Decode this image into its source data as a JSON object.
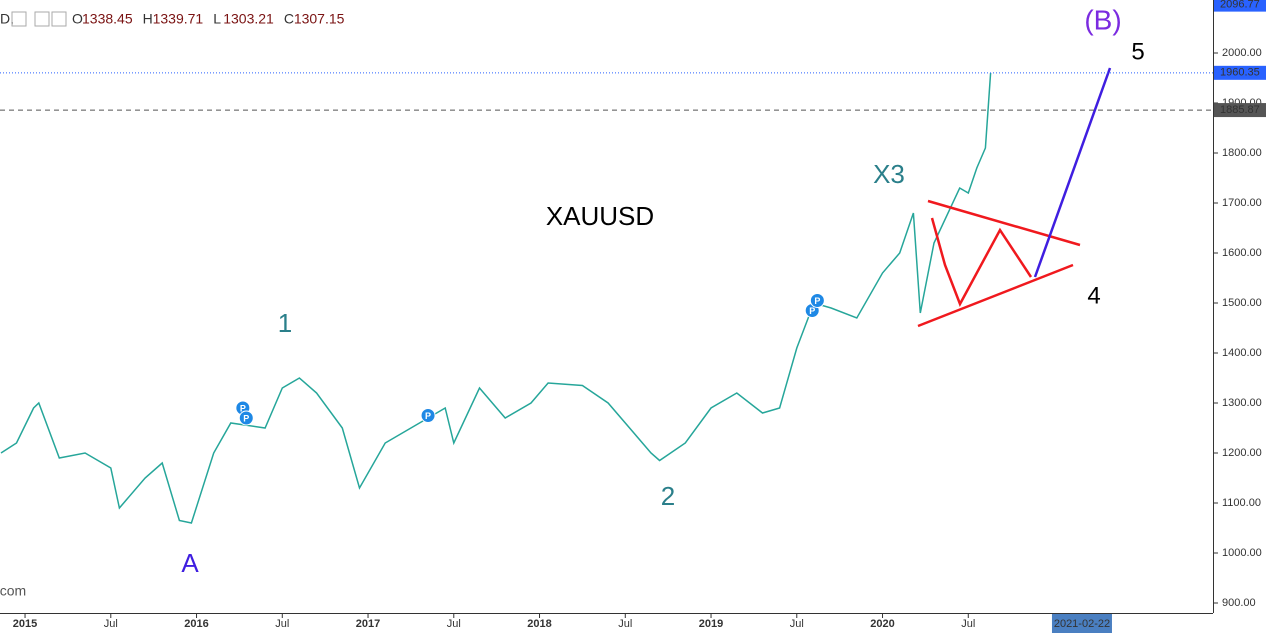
{
  "header": {
    "symbol_fragment": "D,",
    "ohlc": [
      {
        "key": "O",
        "value": "1338.45"
      },
      {
        "key": "H",
        "value": "1339.71"
      },
      {
        "key": "L",
        "value": "1303.21"
      },
      {
        "key": "C",
        "value": "1307.15"
      }
    ]
  },
  "chart_data": {
    "type": "line",
    "x": [
      2014.86,
      2014.95,
      2015.05,
      2015.08,
      2015.2,
      2015.35,
      2015.5,
      2015.55,
      2015.7,
      2015.8,
      2015.9,
      2015.97,
      2016.1,
      2016.2,
      2016.4,
      2016.5,
      2016.6,
      2016.7,
      2016.85,
      2016.95,
      2017.1,
      2017.3,
      2017.45,
      2017.5,
      2017.65,
      2017.8,
      2017.95,
      2018.05,
      2018.25,
      2018.4,
      2018.55,
      2018.65,
      2018.7,
      2018.85,
      2019.0,
      2019.15,
      2019.3,
      2019.4,
      2019.5,
      2019.6,
      2019.7,
      2019.85,
      2020.0,
      2020.1,
      2020.18,
      2020.22,
      2020.3,
      2020.45,
      2020.5,
      2020.55,
      2020.6,
      2020.63
    ],
    "series": [
      {
        "name": "XAUUSD",
        "color": "#26a69a",
        "values": [
          1200,
          1220,
          1290,
          1300,
          1190,
          1200,
          1170,
          1090,
          1150,
          1180,
          1065,
          1060,
          1200,
          1260,
          1250,
          1330,
          1350,
          1320,
          1250,
          1130,
          1220,
          1260,
          1290,
          1220,
          1330,
          1270,
          1300,
          1340,
          1335,
          1300,
          1240,
          1200,
          1185,
          1220,
          1290,
          1320,
          1280,
          1290,
          1410,
          1500,
          1490,
          1470,
          1560,
          1600,
          1680,
          1480,
          1620,
          1730,
          1720,
          1770,
          1810,
          1960
        ]
      }
    ],
    "xlim": [
      2014.854,
      2021.927
    ],
    "xticks": [
      2015,
      {
        "value": 2015.5,
        "label": "Jul"
      },
      2016,
      {
        "value": 2016.5,
        "label": "Jul"
      },
      2017,
      {
        "value": 2017.5,
        "label": "Jul"
      },
      2018,
      {
        "value": 2018.5,
        "label": "Jul"
      },
      2019,
      {
        "value": 2019.5,
        "label": "Jul"
      },
      2020,
      {
        "value": 2020.5,
        "label": "Jul"
      }
    ],
    "crosshair_x": {
      "value": 2021.163,
      "label": "2021-02-22"
    },
    "ylim": [
      880,
      2106
    ],
    "yticks": [
      {
        "value": 900,
        "label": "900.00"
      },
      {
        "value": 1000,
        "label": "1000.00"
      },
      {
        "value": 1100,
        "label": "1100.00"
      },
      {
        "value": 1200,
        "label": "1200.00"
      },
      {
        "value": 1300,
        "label": "1300.00"
      },
      {
        "value": 1400,
        "label": "1400.00"
      },
      {
        "value": 1500,
        "label": "1500.00"
      },
      {
        "value": 1600,
        "label": "1600.00"
      },
      {
        "value": 1700,
        "label": "1700.00"
      },
      {
        "value": 1800,
        "label": "1800.00"
      },
      {
        "value": 1900,
        "label": "1900.00"
      },
      {
        "value": 2000,
        "label": "2000.00"
      }
    ],
    "price_labels": [
      {
        "value": 2096.77,
        "label": "2096.77",
        "color": "#2962ff"
      },
      {
        "value": 1960.35,
        "label": "1960.35",
        "color": "#2962ff"
      },
      {
        "value": 1885.87,
        "label": "1885.87",
        "color": "#555555"
      }
    ],
    "events": [
      {
        "x": 2016.27,
        "value": 1290,
        "label": "P"
      },
      {
        "x": 2016.29,
        "value": 1270,
        "label": "P"
      },
      {
        "x": 2017.35,
        "value": 1275,
        "label": "P"
      },
      {
        "x": 2019.59,
        "value": 1485,
        "label": "P"
      },
      {
        "x": 2019.62,
        "value": 1505,
        "label": "P"
      }
    ],
    "annotations": [
      "XAUUSD",
      "A",
      "1",
      "2",
      "X3",
      "(B)",
      "4",
      "5",
      ".com"
    ]
  }
}
